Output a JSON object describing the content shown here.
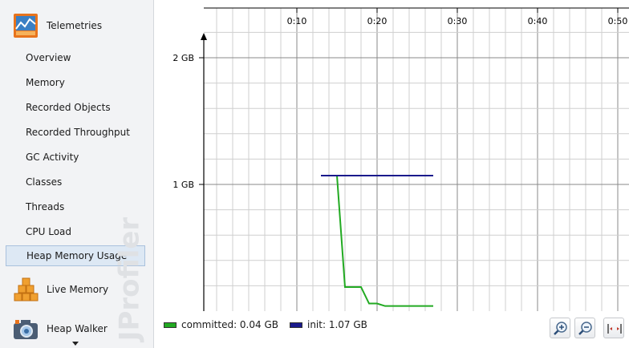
{
  "sidebar": {
    "section_title": "Telemetries",
    "items": [
      {
        "label": "Overview"
      },
      {
        "label": "Memory"
      },
      {
        "label": "Recorded Objects"
      },
      {
        "label": "Recorded Throughput"
      },
      {
        "label": "GC Activity"
      },
      {
        "label": "Classes"
      },
      {
        "label": "Threads"
      },
      {
        "label": "CPU Load"
      },
      {
        "label": "Heap Memory Usage",
        "selected": true
      }
    ],
    "sections": [
      {
        "label": "Live Memory",
        "icon": "live-memory-cubes-icon"
      },
      {
        "label": "Heap Walker",
        "icon": "camera-icon"
      }
    ],
    "watermark": "JProfiler"
  },
  "chart_data": {
    "type": "line",
    "x_tick_labels": [
      "0:10",
      "0:20",
      "0:30",
      "0:40",
      "0:50"
    ],
    "y_tick_labels": [
      "2 GB",
      "1 GB"
    ],
    "xlim": [
      "0:00",
      "0:51"
    ],
    "ylim_gb": [
      0,
      2.4
    ],
    "grid": true,
    "legend_position": "bottom-left",
    "series": [
      {
        "name": "committed: 0.04 GB",
        "color": "#22aa22",
        "points": [
          [
            13,
            1.07
          ],
          [
            15,
            1.07
          ],
          [
            16,
            0.19
          ],
          [
            18,
            0.19
          ],
          [
            19,
            0.06
          ],
          [
            20,
            0.06
          ],
          [
            21,
            0.04
          ],
          [
            27,
            0.04
          ]
        ]
      },
      {
        "name": "init: 1.07 GB",
        "color": "#1a1a8c",
        "points": [
          [
            13,
            1.07
          ],
          [
            27,
            1.07
          ]
        ]
      }
    ]
  },
  "toolbar": {
    "zoom_in": "zoom-in-icon",
    "zoom_out": "zoom-out-icon",
    "fit": "fit-width-icon"
  }
}
